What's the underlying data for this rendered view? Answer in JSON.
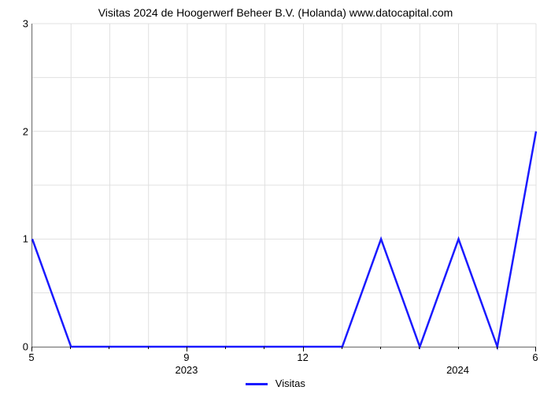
{
  "chart": {
    "type": "line",
    "title": "Visitas 2024 de Hoogerwerf Beheer B.V. (Holanda) www.datocapital.com",
    "title_fontsize": 14,
    "title_color": "#000000",
    "background_color": "#ffffff",
    "grid_color": "#e0e0e0",
    "axis_color": "#000000",
    "line_color": "#1a1aff",
    "line_width": 2.5,
    "ylim": [
      0,
      3
    ],
    "yticks": [
      0,
      1,
      2,
      3
    ],
    "x_count": 14,
    "x_major_labels": [
      {
        "index": 0,
        "label": "5"
      },
      {
        "index": 4,
        "label": "9"
      },
      {
        "index": 7,
        "label": "12"
      },
      {
        "index": 13,
        "label": "6"
      }
    ],
    "x_year_labels": [
      {
        "index": 4,
        "label": "2023"
      },
      {
        "index": 11,
        "label": "2024"
      }
    ],
    "x_minor_idx": [
      1,
      2,
      3,
      5,
      6,
      8,
      9,
      10,
      11,
      12
    ],
    "series_name": "Visitas",
    "values": [
      1,
      0,
      0,
      0,
      0,
      0,
      0,
      0,
      0,
      1,
      0,
      1,
      0,
      2
    ],
    "legend": {
      "label": "Visitas"
    },
    "x_grid_every": 1,
    "y_grid_every": 0.5
  }
}
